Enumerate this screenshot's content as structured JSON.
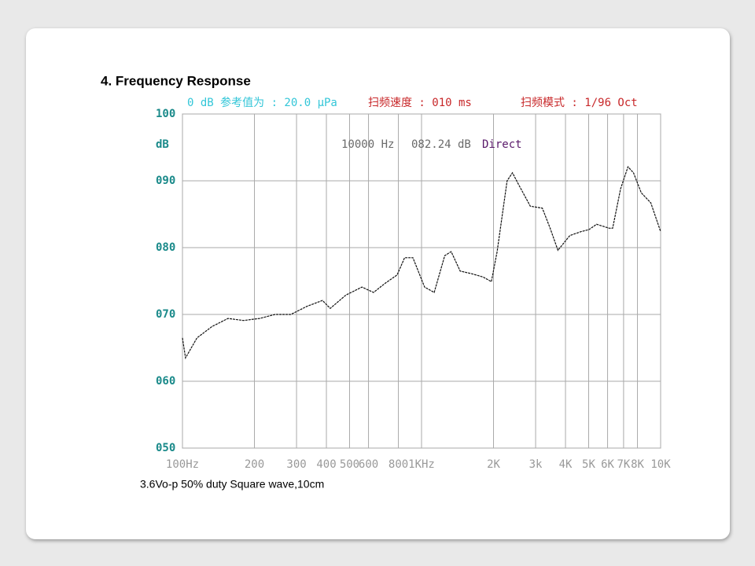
{
  "chart_data": {
    "type": "line",
    "title": "4.  Frequency Response",
    "header_texts": [
      {
        "text": "0 dB 参考值为 : 20.0 μPa",
        "color": "#33c6d8"
      },
      {
        "text": "扫频速度 : 010 ms",
        "color": "#c8282a"
      },
      {
        "text": "扫频模式 : 1/96 Oct",
        "color": "#c8282a"
      }
    ],
    "readout": [
      {
        "text": "10000 Hz",
        "color": "#6a6a6a"
      },
      {
        "text": "082.24 dB",
        "color": "#6a6a6a"
      },
      {
        "text": "Direct",
        "color": "#5a1a6a"
      }
    ],
    "ylabel": "dB",
    "caption": "3.6Vo-p 50% duty Square wave,10cm",
    "xscale": "log",
    "grid": true,
    "xlim": [
      100,
      10000
    ],
    "ylim": [
      50,
      100
    ],
    "xticks": [
      {
        "value": 100,
        "label": "100Hz"
      },
      200,
      300,
      400,
      500,
      600,
      800,
      {
        "value": 1000,
        "label": "1KHz"
      },
      {
        "value": 2000,
        "label": "2K"
      },
      {
        "value": 3000,
        "label": "3k"
      },
      {
        "value": 4000,
        "label": "4K"
      },
      {
        "value": 5000,
        "label": "5K"
      },
      {
        "value": 6000,
        "label": "6K"
      },
      {
        "value": 7000,
        "label": "7K"
      },
      {
        "value": 8000,
        "label": "8K"
      },
      {
        "value": 10000,
        "label": "10K"
      }
    ],
    "yticks": [
      {
        "value": 50,
        "label": "050"
      },
      {
        "value": 60,
        "label": "060"
      },
      {
        "value": 70,
        "label": "070"
      },
      {
        "value": 80,
        "label": "080"
      },
      {
        "value": 90,
        "label": "090"
      },
      100
    ],
    "tick_color": "#1a8a8a",
    "series": [
      {
        "name": "Frequency Response",
        "color": "#111111",
        "x": [
          100,
          103,
          115,
          133,
          155,
          180,
          210,
          244,
          284,
          331,
          385,
          415,
          483,
          563,
          630,
          707,
          790,
          850,
          920,
          1030,
          1130,
          1250,
          1330,
          1450,
          1620,
          1810,
          1960,
          2070,
          2280,
          2400,
          2550,
          2850,
          3200,
          3450,
          3720,
          4170,
          4650,
          5010,
          5400,
          6100,
          6300,
          6800,
          7300,
          7700,
          8300,
          9100,
          10000
        ],
        "values": [
          66.5,
          63.5,
          66.5,
          68.2,
          69.4,
          69.1,
          69.4,
          70.0,
          70.0,
          71.2,
          72.1,
          70.9,
          72.9,
          74.1,
          73.3,
          74.7,
          75.9,
          78.5,
          78.5,
          74.1,
          73.3,
          78.8,
          79.4,
          76.5,
          76.1,
          75.6,
          74.9,
          79.4,
          90.0,
          91.2,
          89.4,
          86.2,
          85.9,
          82.9,
          79.6,
          81.8,
          82.4,
          82.7,
          83.5,
          82.9,
          82.9,
          88.8,
          92.1,
          91.2,
          88.2,
          86.7,
          82.4
        ]
      }
    ]
  }
}
